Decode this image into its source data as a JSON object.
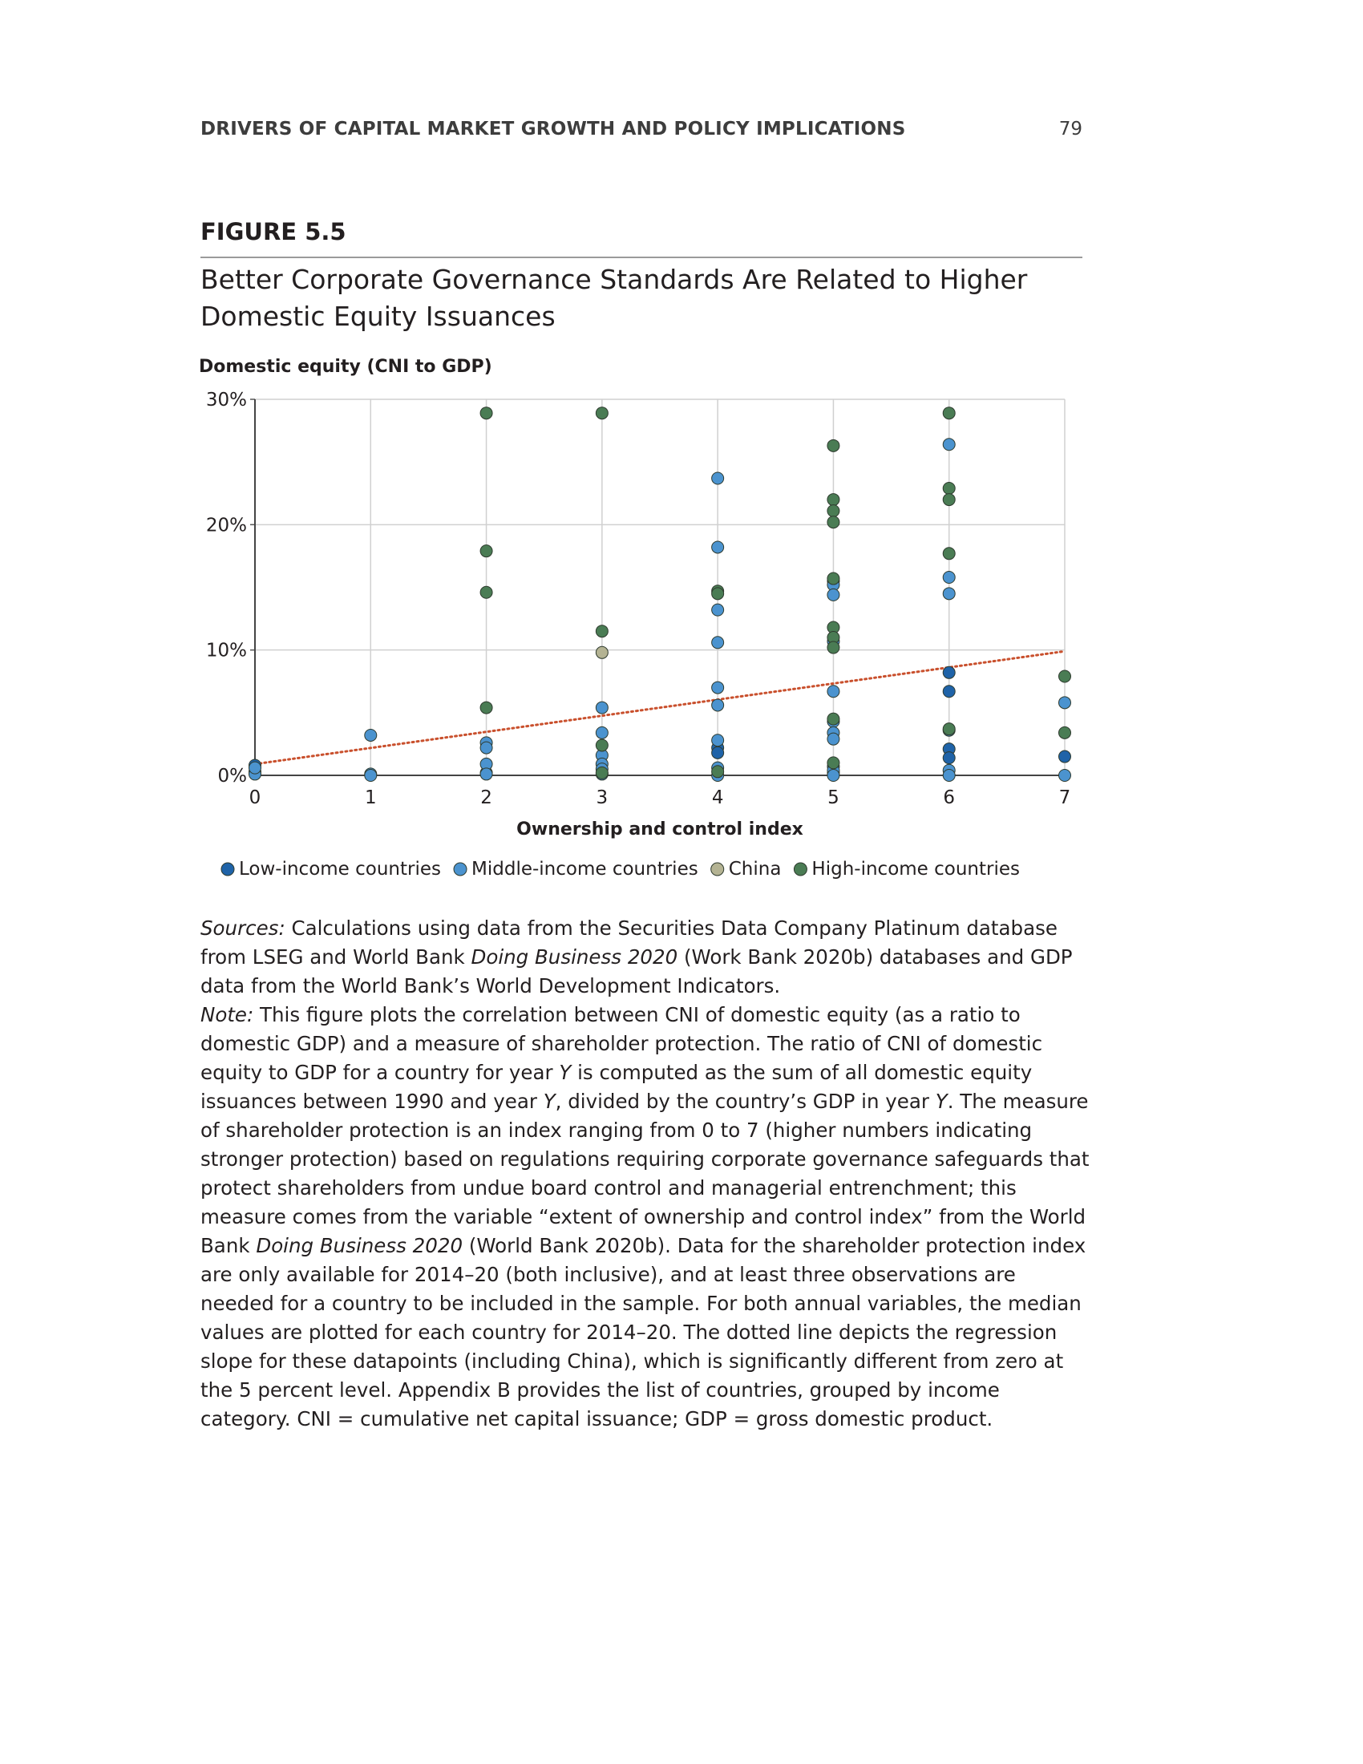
{
  "header": {
    "running_title": "DRIVERS OF CAPITAL MARKET GROWTH AND POLICY IMPLICATIONS",
    "page_number": "79"
  },
  "figure": {
    "label": "FIGURE 5.5",
    "title": "Better Corporate Governance Standards Are Related to Higher Domestic Equity Issuances"
  },
  "chart_data": {
    "type": "scatter",
    "ylabel": "Domestic equity (CNI to GDP)",
    "xlabel": "Ownership and control index",
    "xlim": [
      0,
      7
    ],
    "ylim": [
      0,
      30
    ],
    "x_ticks": [
      "0",
      "1",
      "2",
      "3",
      "4",
      "5",
      "6",
      "7"
    ],
    "y_ticks": [
      "0%",
      "10%",
      "20%",
      "30%"
    ],
    "y_tick_values": [
      0,
      10,
      20,
      30
    ],
    "grid": true,
    "legend_position": "bottom",
    "colors": {
      "Low-income countries": "#1f63a8",
      "Middle-income countries": "#4b93cf",
      "China": "#b4b393",
      "High-income countries": "#4a7c54",
      "regression": "#c9502d"
    },
    "series": [
      {
        "name": "Low-income countries",
        "points": [
          [
            0,
            0.8
          ],
          [
            0,
            0.3
          ],
          [
            2,
            0.2
          ],
          [
            4,
            2.2
          ],
          [
            4,
            1.8
          ],
          [
            5,
            0.2
          ],
          [
            6,
            8.2
          ],
          [
            6,
            6.7
          ],
          [
            6,
            2.1
          ],
          [
            6,
            1.4
          ],
          [
            7,
            1.5
          ]
        ]
      },
      {
        "name": "Middle-income countries",
        "points": [
          [
            0,
            0.1
          ],
          [
            0,
            0.6
          ],
          [
            1,
            3.2
          ],
          [
            1,
            0.1
          ],
          [
            1,
            0.0
          ],
          [
            2,
            2.6
          ],
          [
            2,
            2.2
          ],
          [
            2,
            0.9
          ],
          [
            2,
            0.1
          ],
          [
            3,
            5.4
          ],
          [
            3,
            3.4
          ],
          [
            3,
            1.6
          ],
          [
            3,
            0.9
          ],
          [
            3,
            0.5
          ],
          [
            3,
            0.1
          ],
          [
            4,
            23.7
          ],
          [
            4,
            18.2
          ],
          [
            4,
            13.2
          ],
          [
            4,
            10.6
          ],
          [
            4,
            7.0
          ],
          [
            4,
            5.6
          ],
          [
            4,
            2.8
          ],
          [
            4,
            0.6
          ],
          [
            4,
            0.0
          ],
          [
            5,
            15.5
          ],
          [
            5,
            15.2
          ],
          [
            5,
            14.4
          ],
          [
            5,
            10.7
          ],
          [
            5,
            6.7
          ],
          [
            5,
            4.3
          ],
          [
            5,
            3.4
          ],
          [
            5,
            2.9
          ],
          [
            5,
            0.7
          ],
          [
            5,
            0.4
          ],
          [
            5,
            0.0
          ],
          [
            6,
            26.4
          ],
          [
            6,
            15.8
          ],
          [
            6,
            14.5
          ],
          [
            6,
            3.6
          ],
          [
            6,
            0.4
          ],
          [
            6,
            0.0
          ],
          [
            7,
            5.8
          ],
          [
            7,
            0.0
          ]
        ]
      },
      {
        "name": "China",
        "points": [
          [
            3,
            9.8
          ]
        ]
      },
      {
        "name": "High-income countries",
        "points": [
          [
            2,
            28.9
          ],
          [
            2,
            17.9
          ],
          [
            2,
            14.6
          ],
          [
            2,
            5.4
          ],
          [
            3,
            28.9
          ],
          [
            3,
            11.5
          ],
          [
            3,
            2.4
          ],
          [
            3,
            0.2
          ],
          [
            4,
            14.7
          ],
          [
            4,
            14.5
          ],
          [
            4,
            0.3
          ],
          [
            5,
            26.3
          ],
          [
            5,
            22.0
          ],
          [
            5,
            21.1
          ],
          [
            5,
            20.2
          ],
          [
            5,
            15.7
          ],
          [
            5,
            11.8
          ],
          [
            5,
            11.0
          ],
          [
            5,
            10.2
          ],
          [
            5,
            4.5
          ],
          [
            5,
            1.0
          ],
          [
            6,
            28.9
          ],
          [
            6,
            22.9
          ],
          [
            6,
            22.0
          ],
          [
            6,
            17.7
          ],
          [
            6,
            3.7
          ],
          [
            7,
            7.9
          ],
          [
            7,
            3.4
          ]
        ]
      }
    ],
    "regression_line": {
      "style": "dotted",
      "points": [
        [
          0,
          0.9
        ],
        [
          7,
          9.9
        ]
      ]
    }
  },
  "notes": {
    "sources_label": "Sources:",
    "sources_text_1": " Calculations using data from the Securities Data Company Platinum database from LSEG and World Bank ",
    "sources_italic": "Doing Business 2020",
    "sources_text_2": " (Work Bank 2020b) databases and GDP data from the World Bank’s World Development Indicators.",
    "note_label": "Note:",
    "note_text_1": " This figure plots the correlation between CNI of domestic equity (as a ratio to domestic GDP) and a measure of shareholder protection. The ratio of CNI of domestic equity to GDP for a country for year ",
    "note_y1": "Y",
    "note_text_2": " is computed as the sum of all domestic equity issuances between 1990 and year ",
    "note_y2": "Y",
    "note_text_3": ", divided by the country’s GDP in year ",
    "note_y3": "Y",
    "note_text_4": ". The measure of shareholder protection is an index ranging from 0 to 7 (higher numbers indicating stronger protection) based on regulations requiring corporate governance safeguards that protect shareholders from undue board control and managerial entrenchment; this measure comes from the variable “extent of ownership and control index” from the World Bank ",
    "note_italic_db": "Doing Business 2020",
    "note_text_5": " (World Bank 2020b). Data for the shareholder protection index are only available for 2014–20 (both inclusive), and at least three observations are needed for a country to be included in the sample. For both annual variables, the median values are plotted for each country for 2014–20. The dotted line depicts the regression slope for these datapoints (including China), which is significantly different from zero at the 5 percent level. Appendix B provides the list of countries, grouped by income category. CNI = cumulative net capital issuance; GDP = gross domestic product."
  }
}
